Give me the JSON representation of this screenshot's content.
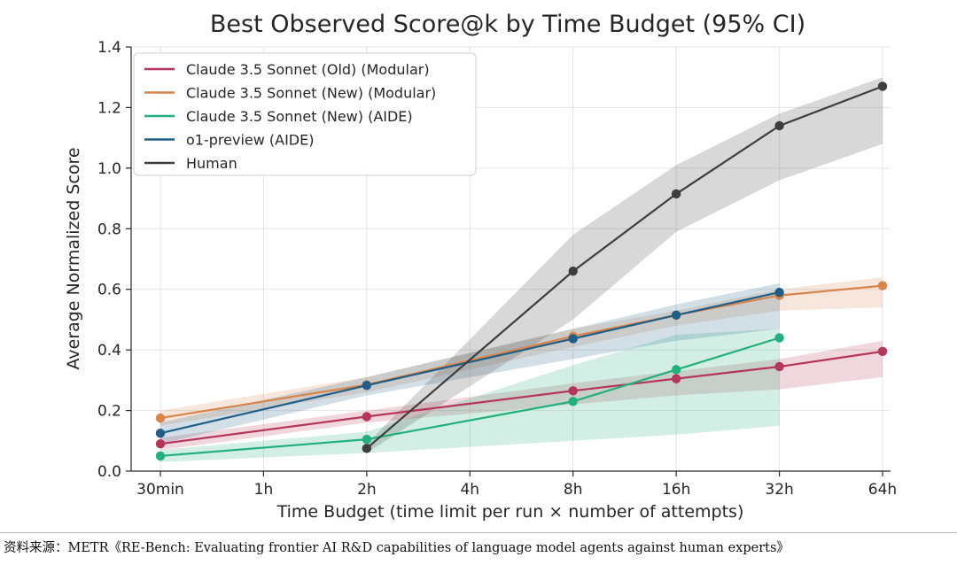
{
  "chart_data": {
    "type": "line",
    "title": "Best Observed Score@k by Time Budget (95% CI)",
    "xlabel": "Time Budget (time limit per run × number of attempts)",
    "ylabel": "Average Normalized Score",
    "categories": [
      "30min",
      "1h",
      "2h",
      "4h",
      "8h",
      "16h",
      "32h",
      "64h"
    ],
    "ylim": [
      0.0,
      1.4
    ],
    "yticks": [
      "0.0",
      "0.2",
      "0.4",
      "0.6",
      "0.8",
      "1.0",
      "1.2",
      "1.4"
    ],
    "grid": true,
    "legend_position": "top-left",
    "series": [
      {
        "name": "Claude 3.5 Sonnet (Old) (Modular)",
        "color": "#b5365a",
        "points": [
          [
            0,
            0.09
          ],
          [
            2,
            0.18
          ],
          [
            4,
            0.265
          ],
          [
            5,
            0.305
          ],
          [
            6,
            0.345
          ],
          [
            7,
            0.395
          ]
        ],
        "ci_lower": [
          0.07,
          0.16,
          0.22,
          0.25,
          0.27,
          0.31
        ],
        "ci_upper": [
          0.11,
          0.2,
          0.29,
          0.33,
          0.37,
          0.43
        ]
      },
      {
        "name": "Claude 3.5 Sonnet (New) (Modular)",
        "color": "#d9844a",
        "points": [
          [
            0,
            0.175
          ],
          [
            2,
            0.285
          ],
          [
            4,
            0.445
          ],
          [
            5,
            0.515
          ],
          [
            6,
            0.58
          ],
          [
            7,
            0.612
          ]
        ],
        "ci_lower": [
          0.15,
          0.26,
          0.41,
          0.48,
          0.53,
          0.54
        ],
        "ci_upper": [
          0.2,
          0.31,
          0.47,
          0.53,
          0.6,
          0.64
        ]
      },
      {
        "name": "Claude 3.5 Sonnet (New) (AIDE)",
        "color": "#22b07d",
        "points": [
          [
            0,
            0.05
          ],
          [
            2,
            0.105
          ],
          [
            4,
            0.23
          ],
          [
            5,
            0.335
          ],
          [
            6,
            0.44
          ]
        ],
        "ci_lower": [
          0.03,
          0.06,
          0.1,
          0.12,
          0.15
        ],
        "ci_upper": [
          0.07,
          0.13,
          0.35,
          0.45,
          0.47
        ]
      },
      {
        "name": "o1-preview (AIDE)",
        "color": "#1f5f87",
        "points": [
          [
            0,
            0.125
          ],
          [
            2,
            0.283
          ],
          [
            4,
            0.437
          ],
          [
            5,
            0.515
          ],
          [
            6,
            0.59
          ]
        ],
        "ci_lower": [
          0.09,
          0.25,
          0.37,
          0.43,
          0.47
        ],
        "ci_upper": [
          0.16,
          0.31,
          0.47,
          0.55,
          0.62
        ]
      },
      {
        "name": "Human",
        "color": "#3d3d3d",
        "points": [
          [
            2,
            0.075
          ],
          [
            4,
            0.66
          ],
          [
            5,
            0.915
          ],
          [
            6,
            1.14
          ],
          [
            7,
            1.27
          ]
        ],
        "ci_lower": [
          0.06,
          0.5,
          0.79,
          0.96,
          1.08
        ],
        "ci_upper": [
          0.09,
          0.78,
          1.01,
          1.18,
          1.3
        ]
      }
    ]
  },
  "source_note": "资料来源：METR《RE-Bench: Evaluating frontier AI R&D capabilities of language model agents against human experts》"
}
